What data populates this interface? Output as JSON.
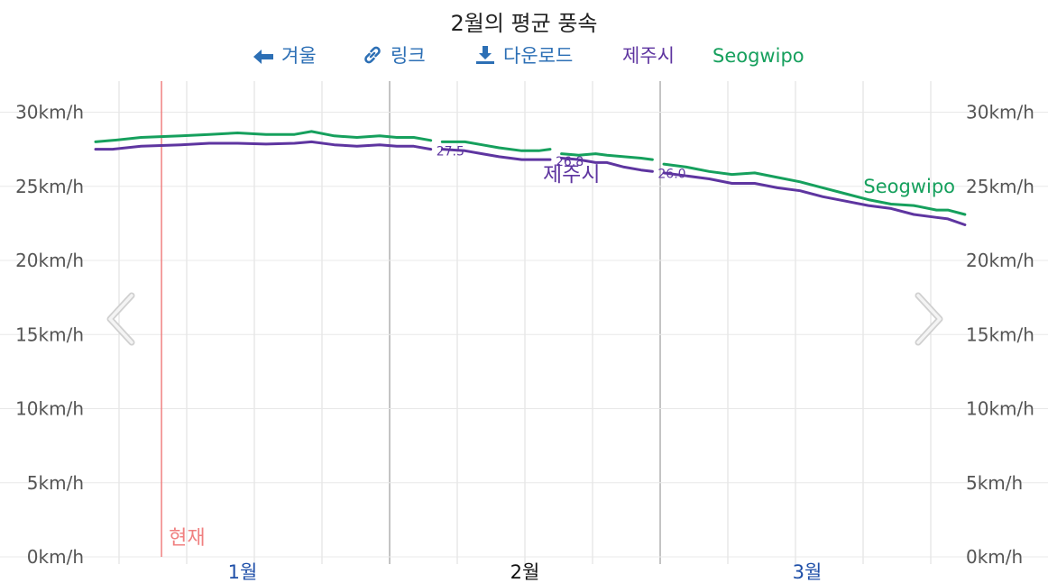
{
  "title": "2월의 평균 풍속",
  "toolbar": {
    "prev_label": "겨울",
    "link_label": "링크",
    "download_label": "다운로드",
    "legend": [
      {
        "name": "제주시",
        "color": "#5e35a0"
      },
      {
        "name": "Seogwipo",
        "color": "#16a05d"
      }
    ]
  },
  "now_label": "현재",
  "colors": {
    "jeju": "#5e35a0",
    "seogwipo": "#16a05d",
    "now": "#f08080",
    "month_link": "#1f4fa8"
  },
  "chart_data": {
    "type": "line",
    "title": "2월의 평균 풍속",
    "unit": "km/h",
    "y_ticks": [
      "0km/h",
      "5km/h",
      "10km/h",
      "15km/h",
      "20km/h",
      "25km/h",
      "30km/h"
    ],
    "ylim": [
      0,
      32
    ],
    "x_months": [
      "1월",
      "2월",
      "3월"
    ],
    "current_month": "2월",
    "grid": true,
    "series": [
      {
        "name": "제주시",
        "color": "#5e35a0",
        "end_labels": [
          "27.5",
          "26.8",
          "26.0"
        ],
        "segments": [
          [
            [
              0,
              27.5
            ],
            [
              3,
              27.5
            ],
            [
              8,
              27.7
            ],
            [
              15,
              27.8
            ],
            [
              20,
              27.9
            ],
            [
              25,
              27.9
            ],
            [
              30,
              27.85
            ],
            [
              35,
              27.9
            ],
            [
              38,
              28.0
            ],
            [
              42,
              27.8
            ],
            [
              46,
              27.7
            ],
            [
              50,
              27.8
            ],
            [
              53,
              27.7
            ],
            [
              56,
              27.7
            ],
            [
              59,
              27.5
            ]
          ],
          [
            [
              61,
              27.5
            ],
            [
              65,
              27.4
            ],
            [
              68,
              27.2
            ],
            [
              71,
              27.0
            ],
            [
              75,
              26.8
            ],
            [
              78,
              26.8
            ],
            [
              80,
              26.8
            ]
          ],
          [
            [
              82,
              26.9
            ],
            [
              85,
              26.8
            ],
            [
              88,
              26.6
            ],
            [
              90,
              26.6
            ],
            [
              93,
              26.3
            ],
            [
              96,
              26.1
            ],
            [
              98,
              26.0
            ]
          ],
          [
            [
              100,
              25.9
            ],
            [
              104,
              25.7
            ],
            [
              108,
              25.5
            ],
            [
              112,
              25.2
            ],
            [
              116,
              25.2
            ],
            [
              120,
              24.9
            ],
            [
              124,
              24.7
            ],
            [
              128,
              24.3
            ],
            [
              132,
              24.0
            ],
            [
              136,
              23.7
            ],
            [
              140,
              23.5
            ],
            [
              144,
              23.1
            ],
            [
              148,
              22.9
            ],
            [
              150,
              22.8
            ],
            [
              153,
              22.4
            ]
          ]
        ]
      },
      {
        "name": "Seogwipo",
        "color": "#16a05d",
        "segments": [
          [
            [
              0,
              28.0
            ],
            [
              3,
              28.1
            ],
            [
              8,
              28.3
            ],
            [
              15,
              28.4
            ],
            [
              20,
              28.5
            ],
            [
              25,
              28.6
            ],
            [
              30,
              28.5
            ],
            [
              35,
              28.5
            ],
            [
              38,
              28.7
            ],
            [
              42,
              28.4
            ],
            [
              46,
              28.3
            ],
            [
              50,
              28.4
            ],
            [
              53,
              28.3
            ],
            [
              56,
              28.3
            ],
            [
              59,
              28.1
            ]
          ],
          [
            [
              61,
              28.0
            ],
            [
              65,
              28.0
            ],
            [
              68,
              27.8
            ],
            [
              71,
              27.6
            ],
            [
              75,
              27.4
            ],
            [
              78,
              27.4
            ],
            [
              80,
              27.5
            ]
          ],
          [
            [
              82,
              27.2
            ],
            [
              85,
              27.1
            ],
            [
              88,
              27.2
            ],
            [
              90,
              27.1
            ],
            [
              93,
              27.0
            ],
            [
              96,
              26.9
            ],
            [
              98,
              26.8
            ]
          ],
          [
            [
              100,
              26.5
            ],
            [
              104,
              26.3
            ],
            [
              108,
              26.0
            ],
            [
              112,
              25.8
            ],
            [
              116,
              25.9
            ],
            [
              120,
              25.6
            ],
            [
              124,
              25.3
            ],
            [
              128,
              24.9
            ],
            [
              132,
              24.5
            ],
            [
              136,
              24.1
            ],
            [
              140,
              23.8
            ],
            [
              144,
              23.7
            ],
            [
              148,
              23.4
            ],
            [
              150,
              23.4
            ],
            [
              153,
              23.1
            ]
          ]
        ]
      }
    ],
    "inline_labels": [
      {
        "series": "제주시",
        "text": "제주시"
      },
      {
        "series": "Seogwipo",
        "text": "Seogwipo"
      }
    ]
  }
}
